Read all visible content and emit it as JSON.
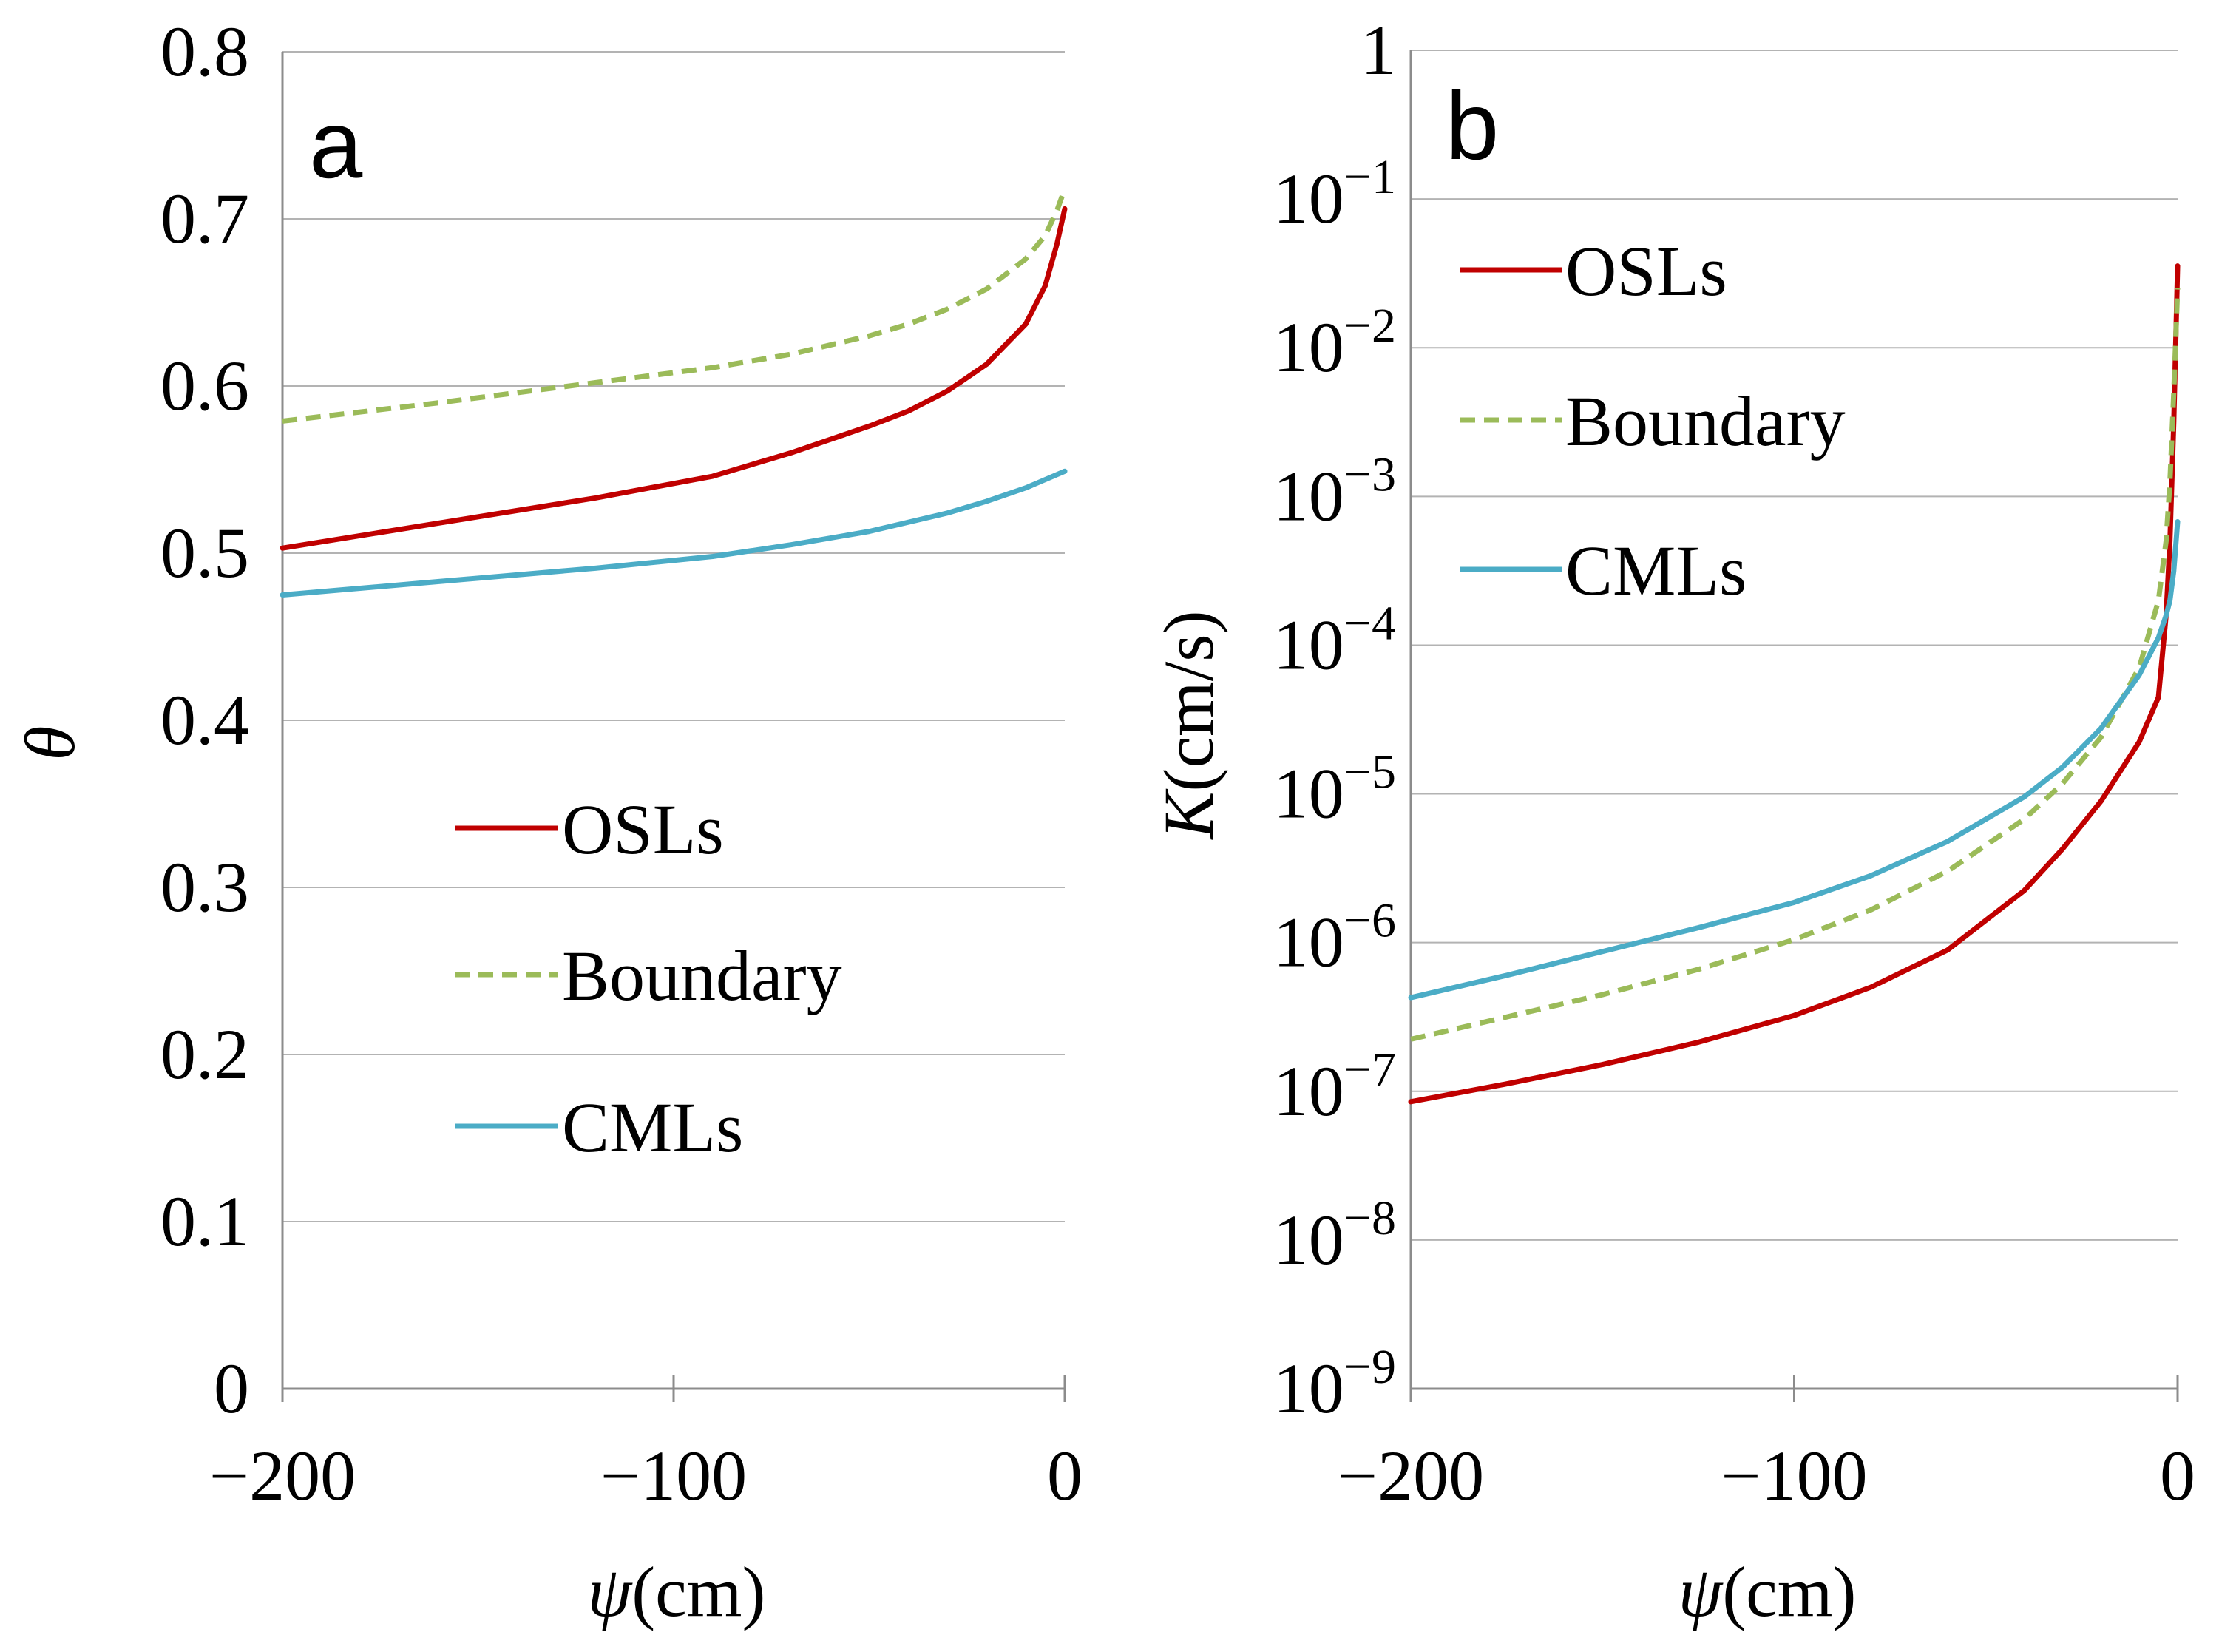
{
  "chart_data": [
    {
      "panel": "a",
      "type": "line",
      "xlabel_sym": "ψ",
      "xlabel_unit": "(cm)",
      "ylabel": "θ",
      "xlim": [
        -200,
        0
      ],
      "ylim": [
        0,
        0.8
      ],
      "xticks": [
        -200,
        -100,
        0
      ],
      "xtick_labels": [
        "−200",
        "−100",
        "0"
      ],
      "yticks": [
        0,
        0.1,
        0.2,
        0.3,
        0.4,
        0.5,
        0.6,
        0.7,
        0.8
      ],
      "ytick_labels": [
        "0",
        "0.1",
        "0.2",
        "0.3",
        "0.4",
        "0.5",
        "0.6",
        "0.7",
        "0.8"
      ],
      "legend_position": "center-right",
      "series": [
        {
          "name": "OSLs",
          "color": "#c00000",
          "dash": "solid",
          "x": [
            -200,
            -160,
            -120,
            -90,
            -70,
            -50,
            -40,
            -30,
            -20,
            -10,
            -5,
            -2,
            0
          ],
          "y": [
            0.503,
            0.518,
            0.533,
            0.546,
            0.56,
            0.576,
            0.585,
            0.597,
            0.613,
            0.637,
            0.66,
            0.685,
            0.706
          ]
        },
        {
          "name": "Boundary",
          "color": "#9bbb59",
          "dash": "dashed",
          "x": [
            -200,
            -160,
            -120,
            -90,
            -70,
            -50,
            -40,
            -30,
            -20,
            -10,
            -5,
            -2,
            0
          ],
          "y": [
            0.579,
            0.59,
            0.602,
            0.611,
            0.619,
            0.63,
            0.637,
            0.646,
            0.658,
            0.676,
            0.69,
            0.705,
            0.718
          ]
        },
        {
          "name": "CMLs",
          "color": "#4bacc6",
          "dash": "solid",
          "x": [
            -200,
            -160,
            -120,
            -90,
            -70,
            -50,
            -30,
            -20,
            -10,
            0
          ],
          "y": [
            0.475,
            0.483,
            0.491,
            0.498,
            0.505,
            0.513,
            0.524,
            0.531,
            0.539,
            0.549
          ]
        }
      ]
    },
    {
      "panel": "b",
      "type": "line",
      "xlabel_sym": "ψ",
      "xlabel_unit": "(cm)",
      "ylabel_sym": "K",
      "ylabel_unit": "(cm/s)",
      "yscale": "log",
      "xlim": [
        -200,
        0
      ],
      "ylim_log10": [
        -9,
        0
      ],
      "xticks": [
        -200,
        -100,
        0
      ],
      "xtick_labels": [
        "−200",
        "−100",
        "0"
      ],
      "yticks_log10": [
        -9,
        -8,
        -7,
        -6,
        -5,
        -4,
        -3,
        -2,
        -1,
        0
      ],
      "ytick_base": "10",
      "ytick_exps": [
        "−9",
        "−8",
        "−7",
        "−6",
        "−5",
        "−4",
        "−3",
        "−2",
        "−1",
        ""
      ],
      "ytick_top_label": "1",
      "legend_position": "top-right",
      "series": [
        {
          "name": "OSLs",
          "color": "#c00000",
          "dash": "solid",
          "x": [
            -200,
            -175,
            -150,
            -125,
            -100,
            -80,
            -60,
            -40,
            -30,
            -20,
            -10,
            -5,
            -3,
            -2,
            -1,
            0
          ],
          "log10_y": [
            -7.07,
            -6.95,
            -6.82,
            -6.67,
            -6.49,
            -6.3,
            -6.05,
            -5.65,
            -5.37,
            -5.05,
            -4.65,
            -4.35,
            -3.8,
            -3.3,
            -2.5,
            -1.45
          ]
        },
        {
          "name": "Boundary",
          "color": "#9bbb59",
          "dash": "dashed",
          "x": [
            -200,
            -175,
            -150,
            -125,
            -100,
            -80,
            -60,
            -40,
            -30,
            -20,
            -10,
            -5,
            -3,
            -2,
            -1,
            0
          ],
          "log10_y": [
            -6.65,
            -6.5,
            -6.35,
            -6.18,
            -5.98,
            -5.78,
            -5.52,
            -5.17,
            -4.93,
            -4.62,
            -4.15,
            -3.7,
            -3.3,
            -2.9,
            -2.3,
            -1.6
          ]
        },
        {
          "name": "CMLs",
          "color": "#4bacc6",
          "dash": "solid",
          "x": [
            -200,
            -175,
            -150,
            -125,
            -100,
            -80,
            -60,
            -40,
            -30,
            -20,
            -10,
            -5,
            -3,
            -2,
            -1,
            0
          ],
          "log10_y": [
            -6.37,
            -6.22,
            -6.06,
            -5.9,
            -5.73,
            -5.55,
            -5.32,
            -5.02,
            -4.82,
            -4.56,
            -4.2,
            -3.95,
            -3.8,
            -3.7,
            -3.5,
            -3.17
          ]
        }
      ]
    }
  ]
}
